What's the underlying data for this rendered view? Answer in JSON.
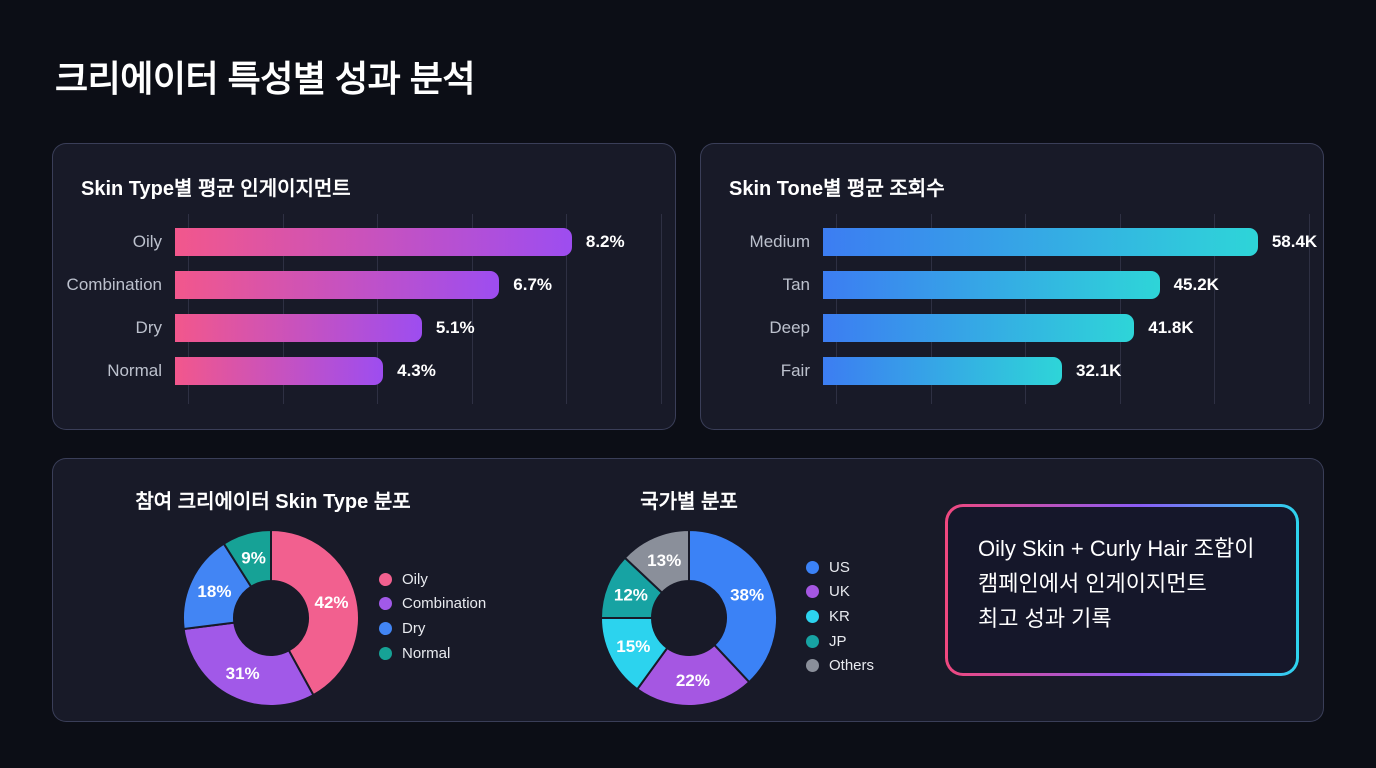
{
  "page_title": "크리에이터 특성별 성과 분석",
  "colors": {
    "background": "#0c0e16",
    "card_background": "#181a28",
    "card_border": "#5b6285",
    "gridline": "#3a4057",
    "bar_label_text": "#bcc1cd",
    "value_text": "#ffffff",
    "callout_border_gradient": [
      "#f0487e",
      "#8b5cf6",
      "#2dd4ee"
    ]
  },
  "chart_data": [
    {
      "type": "bar",
      "orientation": "horizontal",
      "title": "Skin Type별 평균 인게이지먼트",
      "categories": [
        "Oily",
        "Combination",
        "Dry",
        "Normal"
      ],
      "values": [
        8.2,
        6.7,
        5.1,
        4.3
      ],
      "value_labels": [
        "8.2%",
        "6.7%",
        "5.1%",
        "4.3%"
      ],
      "xlim": [
        0,
        10
      ],
      "grid": true,
      "gridline_count": 6,
      "bar_gradient": [
        "#f2578c",
        "#9d4df0"
      ]
    },
    {
      "type": "bar",
      "orientation": "horizontal",
      "title": "Skin Tone별 평균 조회수",
      "categories": [
        "Medium",
        "Tan",
        "Deep",
        "Fair"
      ],
      "values": [
        58.4,
        45.2,
        41.8,
        32.1
      ],
      "value_labels": [
        "58.4K",
        "45.2K",
        "41.8K",
        "32.1K"
      ],
      "xlim": [
        0,
        65
      ],
      "grid": true,
      "gridline_count": 6,
      "bar_gradient": [
        "#3c7df2",
        "#2ed5d8"
      ]
    },
    {
      "type": "pie",
      "subtype": "donut",
      "title": "참여 크리에이터 Skin Type 분포",
      "start_angle": "top",
      "direction": "clockwise",
      "legend_position": "right",
      "segments": [
        {
          "label": "Oily",
          "value": 42,
          "display": "42%",
          "color": "#f2608f"
        },
        {
          "label": "Combination",
          "value": 31,
          "display": "31%",
          "color": "#a159e8"
        },
        {
          "label": "Dry",
          "value": 18,
          "display": "18%",
          "color": "#4285f4"
        },
        {
          "label": "Normal",
          "value": 9,
          "display": "9%",
          "color": "#16a296"
        }
      ]
    },
    {
      "type": "pie",
      "subtype": "donut",
      "title": "국가별 분포",
      "start_angle": "top",
      "direction": "clockwise",
      "legend_position": "right",
      "segments": [
        {
          "label": "US",
          "value": 38,
          "display": "38%",
          "color": "#3b82f6"
        },
        {
          "label": "UK",
          "value": 22,
          "display": "22%",
          "color": "#a557e2"
        },
        {
          "label": "KR",
          "value": 15,
          "display": "15%",
          "color": "#2cd3ee"
        },
        {
          "label": "JP",
          "value": 12,
          "display": "12%",
          "color": "#17a3a3"
        },
        {
          "label": "Others",
          "value": 13,
          "display": "13%",
          "color": "#8a8f9a"
        }
      ]
    }
  ],
  "callout": {
    "text": "Oily Skin + Curly Hair 조합이\n캠페인에서 인게이지먼트\n최고 성과 기록"
  }
}
